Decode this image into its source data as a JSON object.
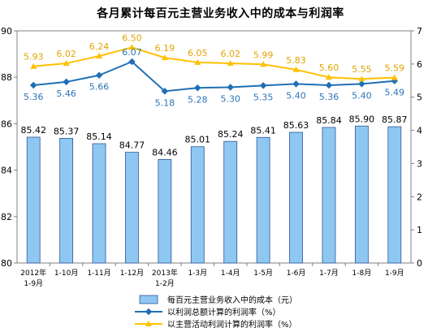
{
  "chart_data": {
    "type": "bar",
    "title": "各月累计每百元主营业务收入中的成本与利润率",
    "categories": [
      [
        "2012年",
        "1-9月"
      ],
      [
        "1-10月"
      ],
      [
        "1-11月"
      ],
      [
        "1-12月"
      ],
      [
        "2013年",
        "1-2月"
      ],
      [
        "1-3月"
      ],
      [
        "1-4月"
      ],
      [
        "1-5月"
      ],
      [
        "1-6月"
      ],
      [
        "1-7月"
      ],
      [
        "1-8月"
      ],
      [
        "1-9月"
      ]
    ],
    "left_axis": {
      "min": 80,
      "max": 90,
      "ticks": [
        "80",
        "82",
        "84",
        "86",
        "88",
        "90"
      ]
    },
    "right_axis": {
      "min": 0,
      "max": 7,
      "ticks": [
        "0",
        "1",
        "2",
        "3",
        "4",
        "5",
        "6",
        "7"
      ]
    },
    "grid": false,
    "legend_position": "bottom",
    "series": [
      {
        "name": "每百元主营业务收入中的成本（元）",
        "type": "bar",
        "axis": "left",
        "color": "#8EC8F2",
        "values": [
          85.42,
          85.37,
          85.14,
          84.77,
          84.46,
          85.01,
          85.24,
          85.41,
          85.63,
          85.84,
          85.9,
          85.87
        ],
        "labels": [
          "85.42",
          "85.37",
          "85.14",
          "84.77",
          "84.46",
          "85.01",
          "85.24",
          "85.41",
          "85.63",
          "85.84",
          "85.90",
          "85.87"
        ]
      },
      {
        "name": "以利润总额计算的利润率（%）",
        "type": "line",
        "axis": "right",
        "color": "#1F6FB5",
        "label_color": "#2E75B6",
        "values": [
          5.36,
          5.46,
          5.66,
          6.07,
          5.18,
          5.28,
          5.3,
          5.35,
          5.4,
          5.36,
          5.4,
          5.49
        ],
        "labels": [
          "5.36",
          "5.46",
          "5.66",
          "6.07",
          "5.18",
          "5.28",
          "5.30",
          "5.35",
          "5.40",
          "5.36",
          "5.40",
          "5.49"
        ]
      },
      {
        "name": "以主营活动利润计算的利润率（%）",
        "type": "line",
        "axis": "right",
        "color": "#FFC000",
        "label_color": "#E3A400",
        "values": [
          5.93,
          6.02,
          6.24,
          6.5,
          6.19,
          6.05,
          6.02,
          5.99,
          5.83,
          5.6,
          5.55,
          5.59
        ],
        "labels": [
          "5.93",
          "6.02",
          "6.24",
          "6.50",
          "6.19",
          "6.05",
          "6.02",
          "5.99",
          "5.83",
          "5.60",
          "5.55",
          "5.59"
        ]
      }
    ]
  }
}
